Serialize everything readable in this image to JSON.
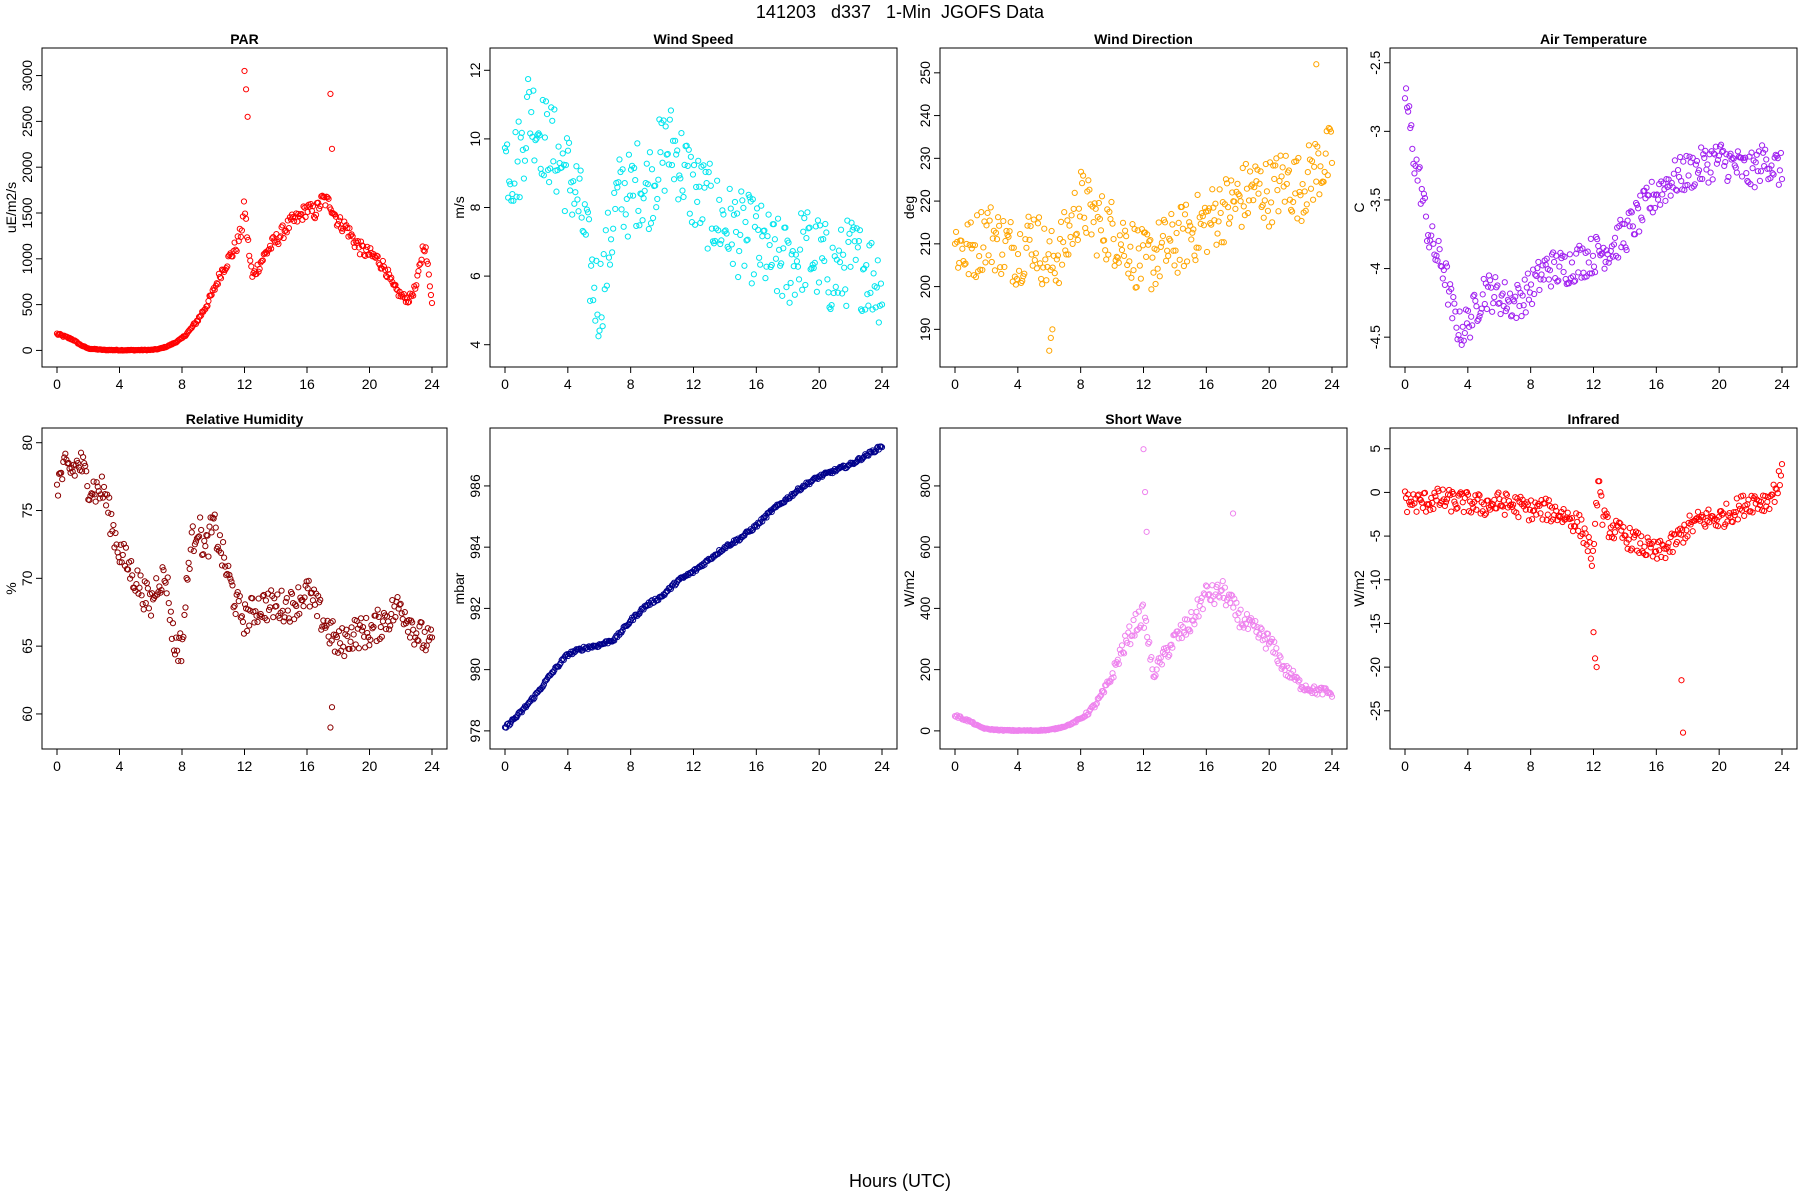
{
  "figure": {
    "title": "141203   d337   1-Min  JGOFS Data",
    "xlabel": "Hours (UTC)"
  },
  "chart_data": [
    {
      "type": "scatter",
      "title": "PAR",
      "ylabel": "uE/m2/s",
      "color": "#ff0000",
      "xlim": [
        0,
        24
      ],
      "xticks": [
        0,
        4,
        8,
        12,
        16,
        20,
        24
      ],
      "ylim": [
        -50,
        3170
      ],
      "yticks": [
        0,
        500,
        1000,
        1500,
        2000,
        2500,
        3000
      ],
      "x": [
        0,
        0.5,
        1,
        1.5,
        2,
        3,
        4,
        5,
        6,
        6.5,
        7,
        7.5,
        8,
        8.5,
        9,
        9.5,
        10,
        10.5,
        11,
        11.5,
        11.8,
        12,
        12.2,
        12.5,
        13,
        13.5,
        14,
        14.5,
        15,
        15.5,
        16,
        16.5,
        17,
        17.5,
        18,
        18.5,
        19,
        19.5,
        20,
        20.5,
        21,
        21.5,
        22,
        22.5,
        23,
        23.5,
        24
      ],
      "y": [
        180,
        150,
        120,
        60,
        20,
        5,
        3,
        3,
        5,
        15,
        40,
        80,
        130,
        220,
        330,
        470,
        640,
        850,
        1000,
        1150,
        1300,
        1600,
        1200,
        800,
        950,
        1100,
        1200,
        1300,
        1400,
        1450,
        1550,
        1500,
        1650,
        1600,
        1400,
        1350,
        1200,
        1100,
        1050,
        1000,
        900,
        700,
        600,
        550,
        700,
        1200,
        550
      ],
      "outliers_x": [
        12.0,
        12.1,
        12.2,
        17.5,
        17.6
      ],
      "outliers_y": [
        3050,
        2850,
        2550,
        2800,
        2200
      ],
      "spread": 80
    },
    {
      "type": "scatter",
      "title": "Wind Speed",
      "ylabel": "m/s",
      "color": "#00e5ee",
      "xlim": [
        0,
        24
      ],
      "xticks": [
        0,
        4,
        8,
        12,
        16,
        20,
        24
      ],
      "ylim": [
        3.7,
        12.3
      ],
      "yticks": [
        4,
        6,
        8,
        10,
        12
      ],
      "x": [
        0,
        0.5,
        1,
        1.5,
        2,
        2.5,
        3,
        3.5,
        4,
        4.5,
        5,
        5.5,
        6,
        6.5,
        7,
        7.5,
        8,
        8.5,
        9,
        9.5,
        10,
        10.5,
        11,
        11.5,
        12,
        13,
        14,
        15,
        16,
        17,
        18,
        19,
        20,
        21,
        22,
        23,
        24
      ],
      "y": [
        9.5,
        9.2,
        9.5,
        11.0,
        10.5,
        10.0,
        9.8,
        9.3,
        9.0,
        8.5,
        7.5,
        6.0,
        5.3,
        6.5,
        8.0,
        8.5,
        8.3,
        8.8,
        8.5,
        9.0,
        9.5,
        9.8,
        9.5,
        9.0,
        8.5,
        8.0,
        7.5,
        7.2,
        7.0,
        6.5,
        6.3,
        6.8,
        6.5,
        6.0,
        6.5,
        6.2,
        5.8
      ],
      "spread": 1.3
    },
    {
      "type": "scatter",
      "title": "Wind Direction",
      "ylabel": "deg",
      "color": "#ffa500",
      "xlim": [
        0,
        24
      ],
      "xticks": [
        0,
        4,
        8,
        12,
        16,
        20,
        24
      ],
      "ylim": [
        184,
        253
      ],
      "yticks": [
        190,
        200,
        210,
        220,
        230,
        240,
        250
      ],
      "x": [
        0,
        1,
        2,
        3,
        4,
        5,
        6,
        7,
        8,
        9,
        10,
        11,
        12,
        13,
        14,
        15,
        16,
        17,
        18,
        19,
        20,
        21,
        22,
        23,
        24
      ],
      "y": [
        210,
        208,
        213,
        210,
        208,
        212,
        205,
        210,
        220,
        215,
        213,
        210,
        205,
        208,
        210,
        213,
        215,
        218,
        220,
        223,
        222,
        225,
        223,
        228,
        230
      ],
      "outliers_x": [
        6.0,
        6.1,
        6.2,
        23.0
      ],
      "outliers_y": [
        185,
        188,
        190,
        252
      ],
      "spread": 8
    },
    {
      "type": "scatter",
      "title": "Air Temperature",
      "ylabel": "C",
      "color": "#a020f0",
      "xlim": [
        0,
        24
      ],
      "xticks": [
        0,
        4,
        8,
        12,
        16,
        20,
        24
      ],
      "ylim": [
        -4.63,
        -2.48
      ],
      "yticks": [
        -4.5,
        -4.0,
        -3.5,
        -3.0,
        -2.5
      ],
      "x": [
        0,
        0.3,
        0.6,
        1,
        1.5,
        2,
        2.5,
        3,
        3.5,
        4,
        4.5,
        5,
        6,
        7,
        8,
        9,
        10,
        11,
        12,
        13,
        14,
        15,
        16,
        17,
        18,
        19,
        20,
        21,
        22,
        23,
        24
      ],
      "y": [
        -2.7,
        -2.95,
        -3.2,
        -3.4,
        -3.75,
        -3.9,
        -4.0,
        -4.3,
        -4.45,
        -4.4,
        -4.3,
        -4.15,
        -4.2,
        -4.25,
        -4.15,
        -4.0,
        -4.0,
        -3.95,
        -3.9,
        -3.85,
        -3.75,
        -3.6,
        -3.45,
        -3.35,
        -3.3,
        -3.25,
        -3.2,
        -3.25,
        -3.3,
        -3.2,
        -3.3
      ],
      "spread": 0.14
    },
    {
      "type": "scatter",
      "title": "Relative Humidity",
      "ylabel": "%",
      "color": "#8b0000",
      "xlim": [
        0,
        24
      ],
      "xticks": [
        0,
        4,
        8,
        12,
        16,
        20,
        24
      ],
      "ylim": [
        58.3,
        80.2
      ],
      "yticks": [
        60,
        65,
        70,
        75,
        80
      ],
      "x": [
        0,
        0.5,
        1,
        1.5,
        2,
        2.5,
        3,
        3.5,
        4,
        4.5,
        5,
        5.5,
        6,
        6.5,
        7,
        7.5,
        8,
        8.5,
        9,
        9.5,
        10,
        10.5,
        11,
        11.5,
        12,
        13,
        14,
        15,
        16,
        17,
        18,
        19,
        20,
        21,
        22,
        23,
        24
      ],
      "y": [
        77,
        78,
        78,
        78.5,
        77,
        76.5,
        76.5,
        74,
        72,
        71,
        70,
        69,
        68,
        70,
        70,
        65,
        65,
        72,
        74,
        72,
        74,
        72,
        70,
        68,
        67,
        68,
        68,
        68,
        69,
        67,
        65,
        66,
        66,
        67,
        68,
        66,
        65
      ],
      "outliers_x": [
        17.5,
        17.6
      ],
      "outliers_y": [
        59,
        60.5
      ],
      "spread": 1.2
    },
    {
      "type": "scatter",
      "title": "Pressure",
      "ylabel": "mbar",
      "color": "#00008b",
      "xlim": [
        0,
        24
      ],
      "xticks": [
        0,
        4,
        8,
        12,
        16,
        20,
        24
      ],
      "ylim": [
        977.8,
        987.5
      ],
      "yticks": [
        978,
        980,
        982,
        984,
        986
      ],
      "x": [
        0,
        1,
        2,
        3,
        4,
        5,
        6,
        7,
        8,
        9,
        10,
        11,
        12,
        13,
        14,
        15,
        16,
        17,
        18,
        19,
        20,
        21,
        22,
        23,
        24
      ],
      "y": [
        978.1,
        978.6,
        979.2,
        979.9,
        980.5,
        980.7,
        980.8,
        981.0,
        981.6,
        982.1,
        982.4,
        982.9,
        983.2,
        983.6,
        984.0,
        984.3,
        984.7,
        985.2,
        985.6,
        986.0,
        986.3,
        986.5,
        986.7,
        987.0,
        987.3
      ],
      "spread": 0.06
    },
    {
      "type": "scatter",
      "title": "Short Wave",
      "ylabel": "W/m2",
      "color": "#ee82ee",
      "xlim": [
        0,
        24
      ],
      "xticks": [
        0,
        4,
        8,
        12,
        16,
        20,
        24
      ],
      "ylim": [
        -20,
        950
      ],
      "yticks": [
        0,
        200,
        400,
        600,
        800
      ],
      "x": [
        0,
        0.5,
        1,
        1.5,
        2,
        3,
        4,
        5,
        6,
        6.5,
        7,
        7.5,
        8,
        8.5,
        9,
        9.5,
        10,
        10.5,
        11,
        11.5,
        12,
        12.3,
        12.6,
        13,
        14,
        15,
        16,
        16.5,
        17,
        17.5,
        18,
        18.5,
        19,
        19.5,
        20,
        20.5,
        21,
        21.5,
        22,
        22.5,
        23,
        23.5,
        24
      ],
      "y": [
        50,
        40,
        30,
        15,
        6,
        2,
        1,
        1,
        3,
        8,
        15,
        25,
        40,
        60,
        90,
        130,
        180,
        250,
        300,
        350,
        380,
        300,
        180,
        220,
        300,
        350,
        450,
        440,
        460,
        420,
        380,
        350,
        330,
        310,
        290,
        250,
        200,
        180,
        150,
        140,
        130,
        130,
        120
      ],
      "outliers_x": [
        12.0,
        12.1,
        12.2,
        17.7
      ],
      "outliers_y": [
        920,
        780,
        650,
        710
      ],
      "spread": 35
    },
    {
      "type": "scatter",
      "title": "Infrared",
      "ylabel": "W/m2",
      "color": "#ff0000",
      "xlim": [
        0,
        24
      ],
      "xticks": [
        0,
        4,
        8,
        12,
        16,
        20,
        24
      ],
      "ylim": [
        -28,
        6
      ],
      "yticks": [
        -25,
        -20,
        -15,
        -10,
        -5,
        0,
        5
      ],
      "x": [
        0,
        1,
        2,
        3,
        4,
        5,
        6,
        7,
        8,
        9,
        10,
        11,
        11.5,
        12,
        12.3,
        12.6,
        13,
        14,
        15,
        16,
        17,
        17.5,
        18,
        19,
        20,
        21,
        22,
        23,
        23.5,
        24
      ],
      "y": [
        -1,
        -1.2,
        -0.8,
        -1,
        -1.2,
        -1.5,
        -1.2,
        -1.5,
        -2,
        -2,
        -2.5,
        -3.5,
        -5,
        -8,
        2,
        -3,
        -4,
        -5,
        -6,
        -7,
        -6,
        -5,
        -4,
        -3,
        -3,
        -2,
        -1,
        -1,
        0,
        2
      ],
      "outliers_x": [
        12.0,
        12.1,
        12.2,
        17.6,
        17.7
      ],
      "outliers_y": [
        -16,
        -19,
        -20,
        -21.5,
        -27.5
      ],
      "spread": 1.3
    }
  ]
}
